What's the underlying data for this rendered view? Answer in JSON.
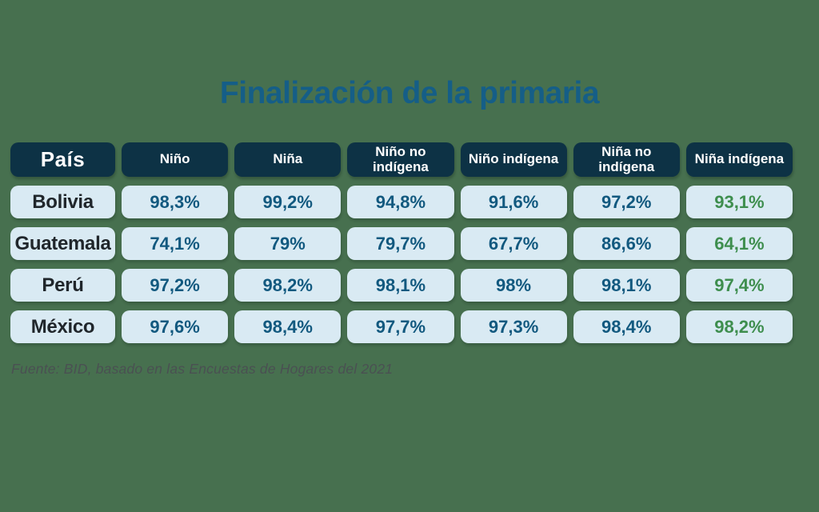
{
  "title": {
    "text": "Finalización de la primaria"
  },
  "table": {
    "columns": [
      {
        "key": "pais",
        "label": "País"
      },
      {
        "key": "nino",
        "label": "Niño"
      },
      {
        "key": "nina",
        "label": "Niña"
      },
      {
        "key": "nino-no-indigena",
        "label": "Niño no indígena"
      },
      {
        "key": "nino-indigena",
        "label": "Niño indígena"
      },
      {
        "key": "nina-no-indigena",
        "label": "Niña no indígena"
      },
      {
        "key": "nina-indigena",
        "label": "Niña indígena"
      }
    ],
    "rows": [
      {
        "country": "Bolivia",
        "values": [
          "98,3%",
          "99,2%",
          "94,8%",
          "91,6%",
          "97,2%",
          "93,1%"
        ]
      },
      {
        "country": "Guatemala",
        "values": [
          "74,1%",
          "79%",
          "79,7%",
          "67,7%",
          "86,6%",
          "64,1%"
        ]
      },
      {
        "country": "Perú",
        "values": [
          "97,2%",
          "98,2%",
          "98,1%",
          "98%",
          "98,1%",
          "97,4%"
        ]
      },
      {
        "country": "México",
        "values": [
          "97,6%",
          "98,4%",
          "97,7%",
          "97,3%",
          "98,4%",
          "98,2%"
        ]
      }
    ]
  },
  "footer": {
    "text": "Fuente: BID, basado en las Encuestas de Hogares del 2021"
  },
  "theme": {
    "background": "#47704F",
    "header_navy": "#0D3245",
    "cell_light_blue": "#D9EAF3",
    "title_blue": "#155E87",
    "value_blue": "#12597F",
    "value_green": "#3E8E4E",
    "country_text": "#20262B",
    "footer_gray": "#4A5052",
    "header_text": "#FFFFFF"
  },
  "chart_data": {
    "type": "table",
    "title": "Finalización de la primaria",
    "categories": [
      "Bolivia",
      "Guatemala",
      "Perú",
      "México"
    ],
    "series": [
      {
        "name": "Niño",
        "values": [
          98.3,
          74.1,
          97.2,
          97.6
        ]
      },
      {
        "name": "Niña",
        "values": [
          99.2,
          79.0,
          98.2,
          98.4
        ]
      },
      {
        "name": "Niño no indígena",
        "values": [
          94.8,
          79.7,
          98.1,
          97.7
        ]
      },
      {
        "name": "Niño indígena",
        "values": [
          91.6,
          67.7,
          98.0,
          97.3
        ]
      },
      {
        "name": "Niña no indígena",
        "values": [
          97.2,
          86.6,
          98.1,
          98.4
        ]
      },
      {
        "name": "Niña indígena",
        "values": [
          93.1,
          64.1,
          97.4,
          98.2
        ]
      }
    ],
    "units": "%",
    "decimal_separator": ",",
    "source": "Fuente: BID, basado en las Encuestas de Hogares del 2021",
    "highlight": "last column (Niña indígena) rendered in green, other values in blue"
  }
}
